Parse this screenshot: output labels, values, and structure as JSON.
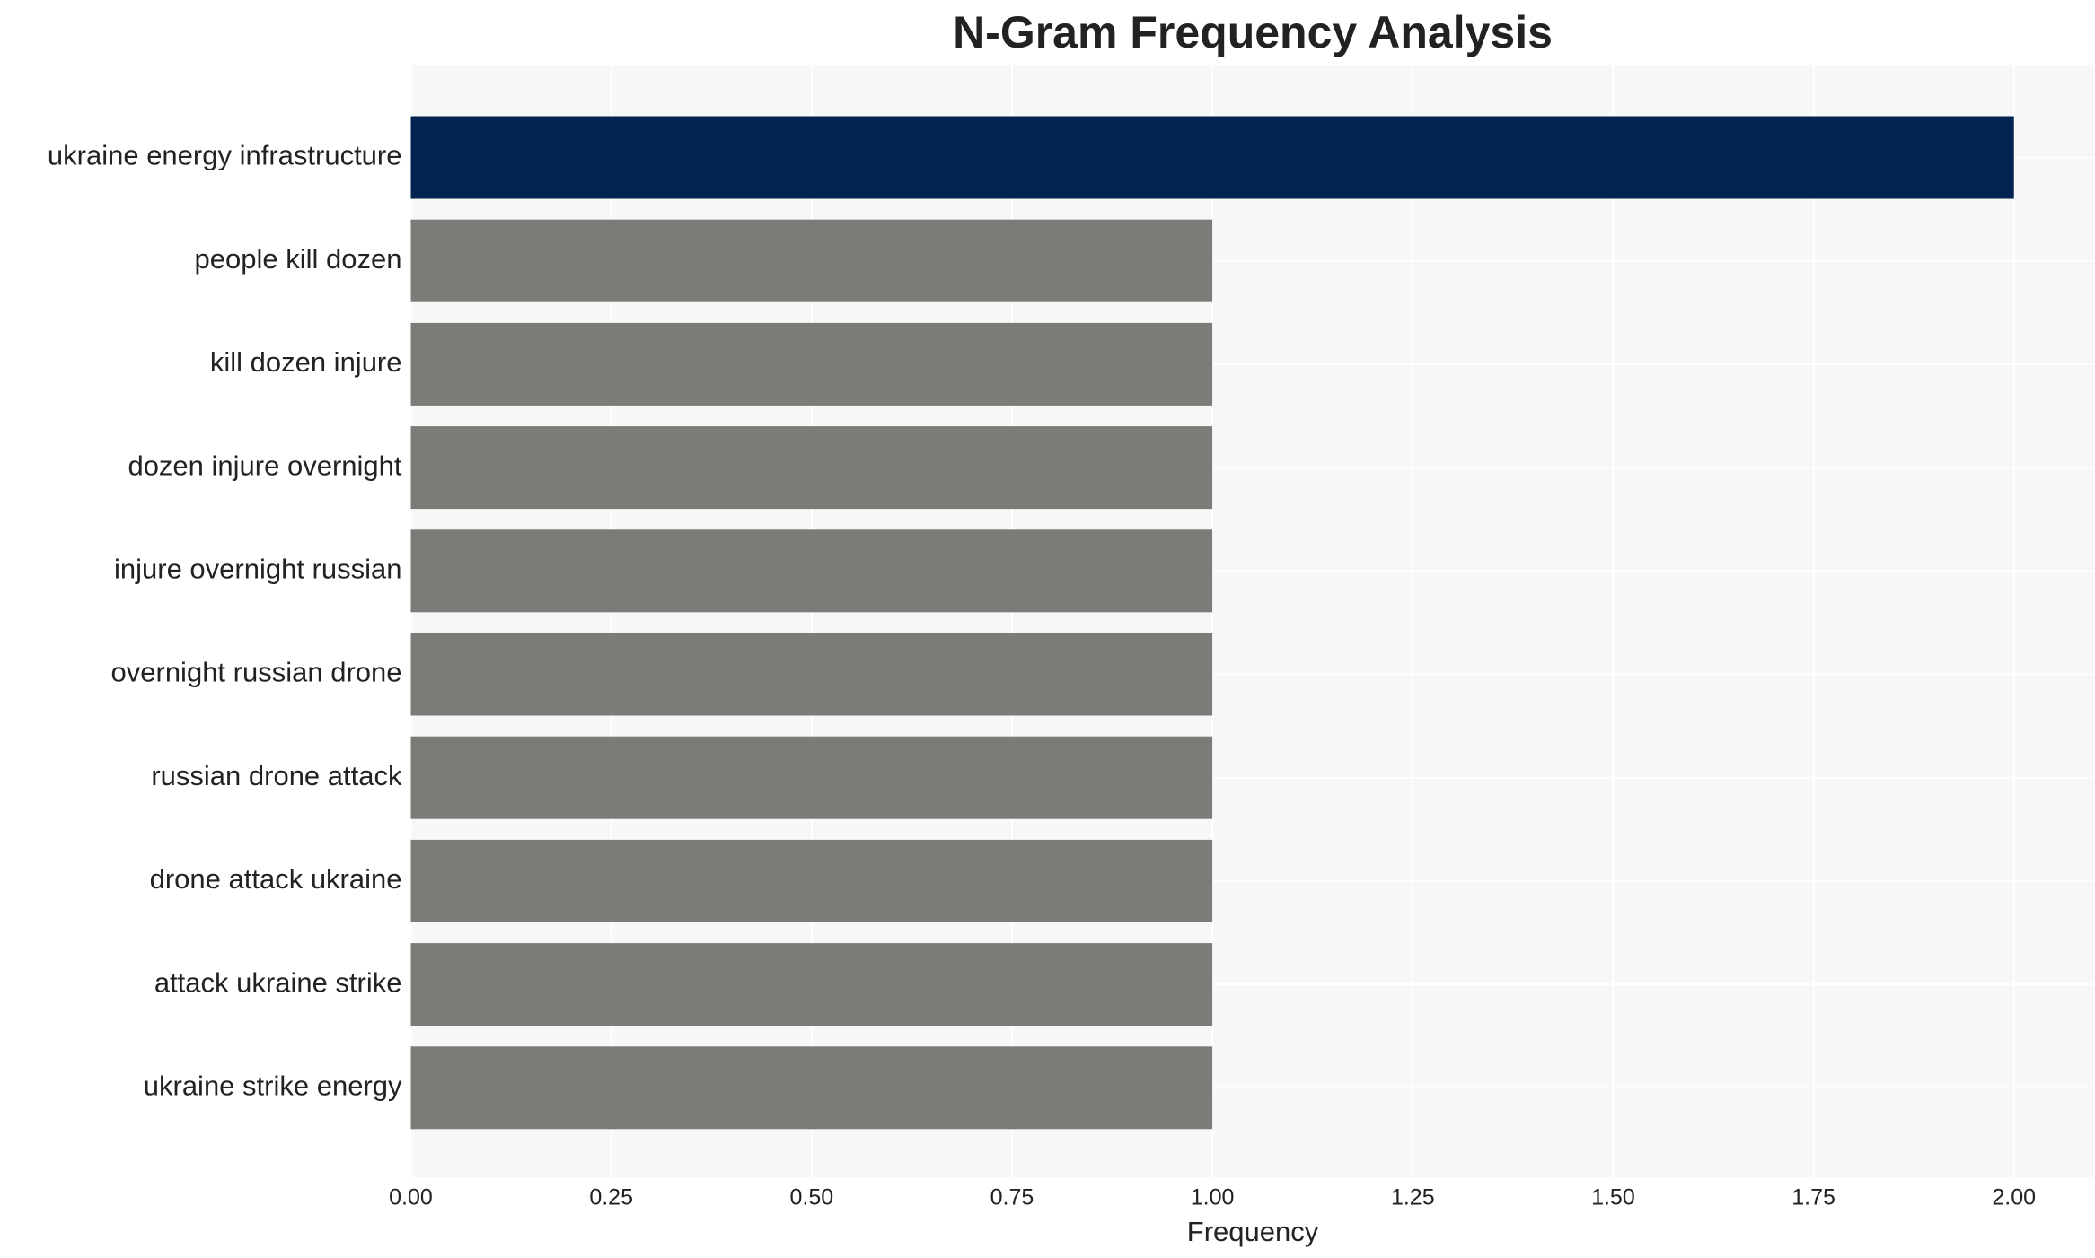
{
  "chart_data": {
    "type": "barh",
    "title": "N-Gram Frequency Analysis",
    "x_label": "Frequency",
    "categories": [
      "ukraine energy infrastructure",
      "people kill dozen",
      "kill dozen injure",
      "dozen injure overnight",
      "injure overnight russian",
      "overnight russian drone",
      "russian drone attack",
      "drone attack ukraine",
      "attack ukraine strike",
      "ukraine strike energy"
    ],
    "values": [
      2,
      1,
      1,
      1,
      1,
      1,
      1,
      1,
      1,
      1
    ],
    "colors": [
      "#00234f",
      "#7d7b77",
      "#7d7b77",
      "#7d7b77",
      "#7d7b77",
      "#7d7b77",
      "#7d7b77",
      "#7d7b77",
      "#7d7b77",
      "#7d7b77"
    ],
    "xlim": [
      0,
      2.1
    ],
    "xticks": [
      {
        "value": 0,
        "label": "0.00"
      },
      {
        "value": 0.25,
        "label": "0.25"
      },
      {
        "value": 0.5,
        "label": "0.50"
      },
      {
        "value": 0.75,
        "label": "0.75"
      },
      {
        "value": 1,
        "label": "1.00"
      },
      {
        "value": 1.25,
        "label": "1.25"
      },
      {
        "value": 1.5,
        "label": "1.50"
      },
      {
        "value": 1.75,
        "label": "1.75"
      },
      {
        "value": 2,
        "label": "2.00"
      }
    ],
    "grid": true
  }
}
